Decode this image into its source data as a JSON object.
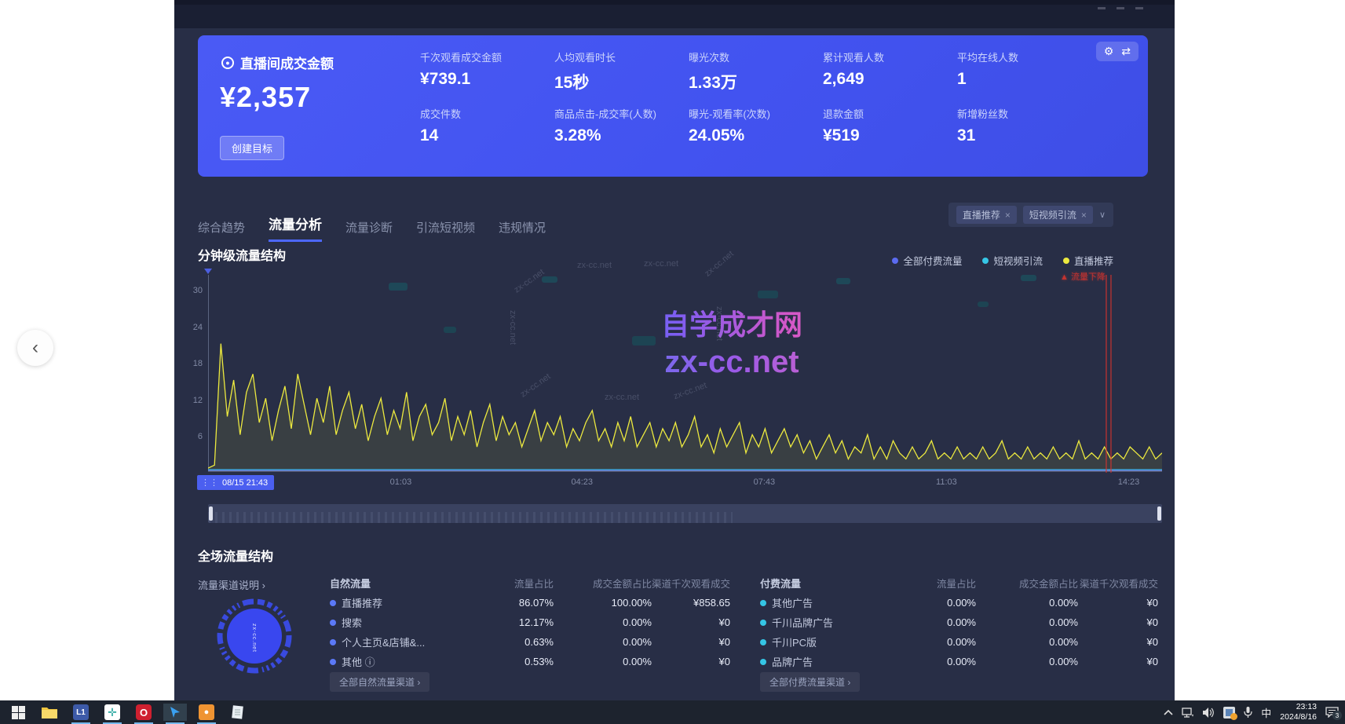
{
  "viewer": {
    "prev_glyph": "‹"
  },
  "watermark": {
    "center_line1": "自学成才网",
    "center_line2": "zx-cc.net",
    "small": "zx-cc.net"
  },
  "header_card": {
    "main_label": "直播间成交金额",
    "main_value": "¥2,357",
    "goal_button": "创建目标",
    "gear_glyph": "⚙",
    "swap_glyph": "⇄",
    "metrics_row1": [
      {
        "label": "千次观看成交金额",
        "value": "¥739.1"
      },
      {
        "label": "人均观看时长",
        "value": "15秒"
      },
      {
        "label": "曝光次数",
        "value": "1.33万"
      },
      {
        "label": "累计观看人数",
        "value": "2,649"
      },
      {
        "label": "平均在线人数",
        "value": "1"
      }
    ],
    "metrics_row2": [
      {
        "label": "成交件数",
        "value": "14"
      },
      {
        "label": "商品点击-成交率(人数)",
        "value": "3.28%"
      },
      {
        "label": "曝光-观看率(次数)",
        "value": "24.05%"
      },
      {
        "label": "退款金额",
        "value": "¥519"
      },
      {
        "label": "新增粉丝数",
        "value": "31"
      }
    ]
  },
  "tabs": [
    {
      "label": "综合趋势"
    },
    {
      "label": "流量分析"
    },
    {
      "label": "流量诊断"
    },
    {
      "label": "引流短视频"
    },
    {
      "label": "违规情况"
    }
  ],
  "filter": {
    "chips": [
      "直播推荐",
      "短视频引流"
    ],
    "close_glyph": "×",
    "chevron_glyph": "∨"
  },
  "minute_section": {
    "title": "分钟级流量结构",
    "alert_text": "▲ 流量下降",
    "grip_glyph": "⋮⋮"
  },
  "chart_data": {
    "type": "line",
    "title": "分钟级流量结构",
    "ylim": [
      0,
      30
    ],
    "yticks": [
      "30",
      "24",
      "18",
      "12",
      "6"
    ],
    "x_ticks": [
      "08/15 21:43",
      "01:03",
      "04:23",
      "07:43",
      "11:03",
      "14:23"
    ],
    "legend_position": "top-right",
    "grid": false,
    "annotation": {
      "text": "流量下降",
      "x_frac": 0.944,
      "color": "#d3342e"
    },
    "series": [
      {
        "name": "全部付费流量",
        "color": "#5b6bf0",
        "values": [
          0
        ]
      },
      {
        "name": "短视频引流",
        "color": "#36c6e6",
        "values": [
          0
        ]
      },
      {
        "name": "直播推荐",
        "color": "#ece93f",
        "values": [
          0.5,
          1,
          21,
          9,
          15,
          6,
          13,
          16,
          8,
          12,
          5,
          10,
          14,
          7,
          16,
          11,
          6,
          12,
          8,
          14,
          6,
          10,
          13,
          7,
          11,
          5,
          9,
          12,
          6,
          10,
          7,
          13,
          5,
          9,
          11,
          6,
          8,
          12,
          5,
          9,
          6,
          10,
          4,
          8,
          11,
          5,
          9,
          6,
          8,
          4,
          7,
          10,
          5,
          8,
          6,
          9,
          4,
          7,
          5,
          8,
          10,
          5,
          7,
          4,
          8,
          5,
          9,
          4,
          6,
          8,
          4,
          7,
          5,
          8,
          4,
          6,
          9,
          4,
          6,
          3,
          7,
          4,
          6,
          8,
          3,
          6,
          4,
          7,
          3,
          5,
          7,
          4,
          6,
          3,
          5,
          2,
          4,
          6,
          3,
          5,
          2,
          4,
          3,
          6,
          2,
          4,
          2,
          5,
          3,
          2,
          4,
          2,
          3,
          5,
          2,
          3,
          2,
          4,
          2,
          3,
          2,
          4,
          2,
          3,
          5,
          2,
          3,
          2,
          4,
          2,
          3,
          2,
          4,
          2,
          3,
          2,
          5,
          2,
          3,
          2,
          4,
          2,
          3,
          2,
          4,
          3,
          2,
          4,
          2,
          3
        ]
      }
    ]
  },
  "overall_section": {
    "title": "全场流量结构",
    "channel_help": "流量渠道说明 ›",
    "natural": {
      "group_label": "自然流量",
      "columns": [
        "流量占比",
        "成交金额占比",
        "渠道千次观看成交"
      ],
      "rows": [
        {
          "name": "直播推荐",
          "v1": "86.07%",
          "v2": "100.00%",
          "v3": "¥858.65"
        },
        {
          "name": "搜索",
          "v1": "12.17%",
          "v2": "0.00%",
          "v3": "¥0"
        },
        {
          "name": "个人主页&店铺&...",
          "v1": "0.63%",
          "v2": "0.00%",
          "v3": "¥0"
        },
        {
          "name": "其他 ⓘ",
          "v1": "0.53%",
          "v2": "0.00%",
          "v3": "¥0"
        }
      ],
      "footer": "全部自然流量渠道 ›",
      "dot_color": "#5b79f7"
    },
    "paid": {
      "group_label": "付费流量",
      "columns": [
        "流量占比",
        "成交金额占比",
        "渠道千次观看成交"
      ],
      "rows": [
        {
          "name": "其他广告",
          "v1": "0.00%",
          "v2": "0.00%",
          "v3": "¥0"
        },
        {
          "name": "千川品牌广告",
          "v1": "0.00%",
          "v2": "0.00%",
          "v3": "¥0"
        },
        {
          "name": "千川PC版",
          "v1": "0.00%",
          "v2": "0.00%",
          "v3": "¥0"
        },
        {
          "name": "品牌广告",
          "v1": "0.00%",
          "v2": "0.00%",
          "v3": "¥0"
        }
      ],
      "footer": "全部付费流量渠道 ›",
      "dot_color": "#35c5e5"
    },
    "donut_color": "#3b4ef0"
  },
  "taskbar": {
    "apps": [
      "start",
      "file-explorer",
      "app-l1",
      "app-teal",
      "browser-red",
      "pointer-app",
      "app-orange",
      "notepad"
    ],
    "app_l1_text": "L1",
    "input_indicator": "中",
    "time": "23:13",
    "date": "2024/8/16",
    "notification_count": "3"
  }
}
